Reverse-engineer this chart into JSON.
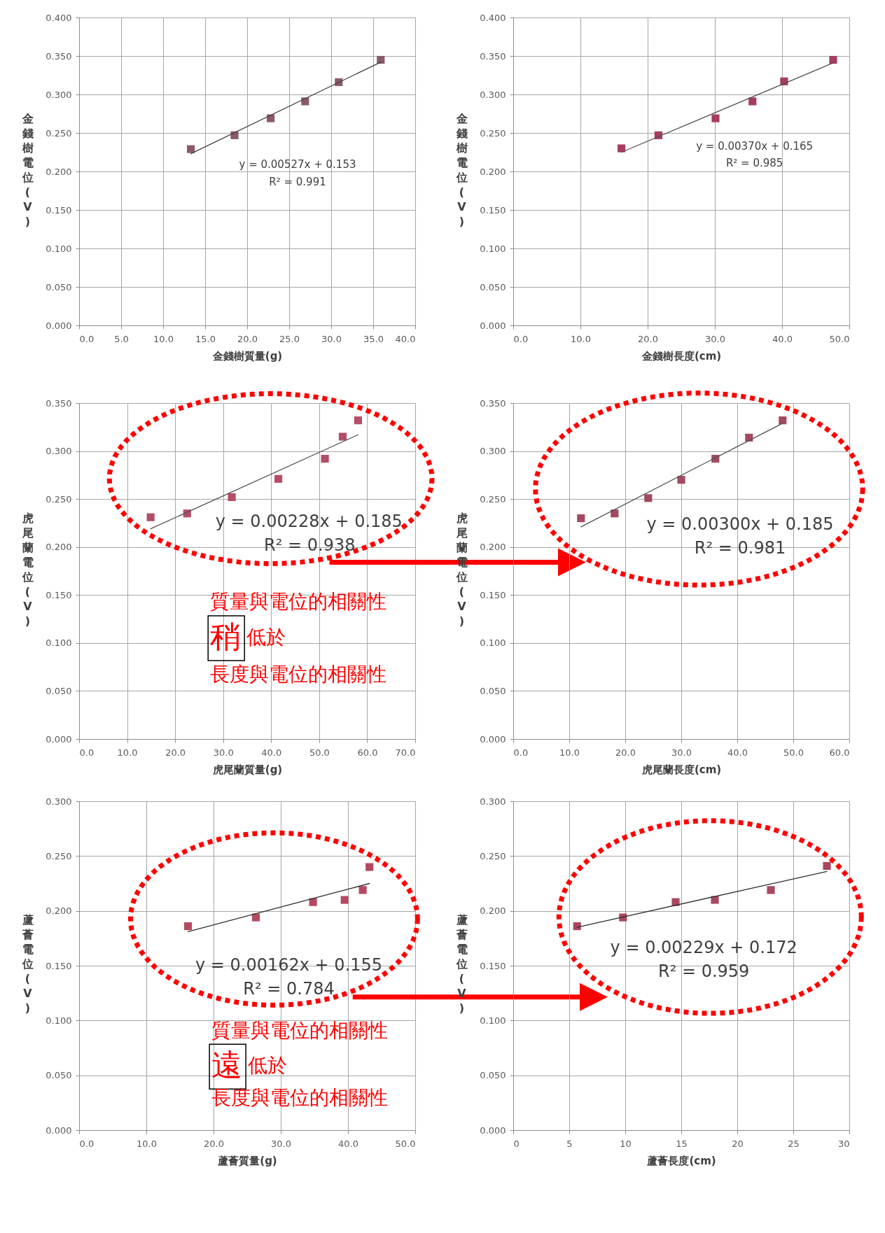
{
  "chart_data": [
    {
      "type": "scatter",
      "xlabel": "金錢樹質量(g)",
      "ylabel": "金錢樹電位(V)",
      "xlim": [
        0,
        40
      ],
      "ylim": [
        0,
        0.4
      ],
      "xticks": [
        {
          "value": 0,
          "label": "0.0"
        },
        {
          "value": 5,
          "label": "5.0"
        },
        {
          "value": 10,
          "label": "10.0"
        },
        {
          "value": 15,
          "label": "15.0"
        },
        {
          "value": 20,
          "label": "20.0"
        },
        {
          "value": 25,
          "label": "25.0"
        },
        {
          "value": 30,
          "label": "30.0"
        },
        {
          "value": 35,
          "label": "35.0"
        },
        {
          "value": 40,
          "label": "40.0"
        }
      ],
      "yticks": [
        {
          "value": 0,
          "label": "0.000"
        },
        {
          "value": 0.05,
          "label": "0.050"
        },
        {
          "value": 0.1,
          "label": "0.100"
        },
        {
          "value": 0.15,
          "label": "0.150"
        },
        {
          "value": 0.2,
          "label": "0.200"
        },
        {
          "value": 0.25,
          "label": "0.250"
        },
        {
          "value": 0.3,
          "label": "0.300"
        },
        {
          "value": 0.35,
          "label": "0.350"
        },
        {
          "value": 0.4,
          "label": "0.400"
        }
      ],
      "grid": true,
      "marker": "square",
      "series": [
        {
          "color": "#8a5a6c",
          "x": [
            13.3,
            18.5,
            22.8,
            26.9,
            30.9,
            35.9
          ],
          "values": [
            0.229,
            0.247,
            0.269,
            0.291,
            0.316,
            0.345
          ]
        },
        {
          "type": "line",
          "marker": "none",
          "color": "#404040",
          "x": [
            13.3,
            35.9
          ],
          "values": [
            0.223,
            0.342
          ]
        }
      ],
      "annotations": [
        "y = 0.00527x + 0.153",
        "R² = 0.991"
      ]
    },
    {
      "type": "scatter",
      "xlabel": "金錢樹長度(cm)",
      "ylabel": "金錢樹電位(V)",
      "xlim": [
        0,
        50
      ],
      "ylim": [
        0,
        0.4
      ],
      "xticks": [
        {
          "value": 0,
          "label": "0.0"
        },
        {
          "value": 10,
          "label": "10.0"
        },
        {
          "value": 20,
          "label": "20.0"
        },
        {
          "value": 30,
          "label": "30.0"
        },
        {
          "value": 40,
          "label": "40.0"
        },
        {
          "value": 50,
          "label": "50.0"
        }
      ],
      "yticks": [
        {
          "value": 0,
          "label": "0.000"
        },
        {
          "value": 0.05,
          "label": "0.050"
        },
        {
          "value": 0.1,
          "label": "0.100"
        },
        {
          "value": 0.15,
          "label": "0.150"
        },
        {
          "value": 0.2,
          "label": "0.200"
        },
        {
          "value": 0.25,
          "label": "0.250"
        },
        {
          "value": 0.3,
          "label": "0.300"
        },
        {
          "value": 0.35,
          "label": "0.350"
        },
        {
          "value": 0.4,
          "label": "0.400"
        }
      ],
      "grid": true,
      "marker": "square",
      "series": [
        {
          "color": "#a63d5e",
          "x": [
            16.1,
            21.6,
            30.1,
            35.6,
            40.3,
            47.6
          ],
          "values": [
            0.23,
            0.247,
            0.269,
            0.291,
            0.317,
            0.345
          ]
        },
        {
          "type": "line",
          "marker": "none",
          "color": "#505050",
          "x": [
            16.1,
            47.6
          ],
          "values": [
            0.225,
            0.341
          ]
        }
      ],
      "annotations": [
        "y = 0.00370x + 0.165",
        "R² = 0.985"
      ]
    },
    {
      "type": "scatter",
      "xlabel": "虎尾蘭質量(g)",
      "ylabel": "虎尾蘭電位(V)",
      "xlim": [
        0,
        70
      ],
      "ylim": [
        0,
        0.35
      ],
      "xticks": [
        {
          "value": 0,
          "label": "0.0"
        },
        {
          "value": 10,
          "label": "10.0"
        },
        {
          "value": 20,
          "label": "20.0"
        },
        {
          "value": 30,
          "label": "30.0"
        },
        {
          "value": 40,
          "label": "40.0"
        },
        {
          "value": 50,
          "label": "50.0"
        },
        {
          "value": 60,
          "label": "60.0"
        },
        {
          "value": 70,
          "label": "70.0"
        }
      ],
      "yticks": [
        {
          "value": 0,
          "label": "0.000"
        },
        {
          "value": 0.05,
          "label": "0.050"
        },
        {
          "value": 0.1,
          "label": "0.100"
        },
        {
          "value": 0.15,
          "label": "0.150"
        },
        {
          "value": 0.2,
          "label": "0.200"
        },
        {
          "value": 0.25,
          "label": "0.250"
        },
        {
          "value": 0.3,
          "label": "0.300"
        },
        {
          "value": 0.35,
          "label": "0.350"
        }
      ],
      "grid": true,
      "marker": "square",
      "series": [
        {
          "color": "#b44e68",
          "x": [
            14.9,
            22.5,
            31.8,
            41.5,
            51.2,
            54.9,
            58.1
          ],
          "values": [
            0.231,
            0.235,
            0.252,
            0.271,
            0.292,
            0.315,
            0.332
          ]
        },
        {
          "type": "line",
          "marker": "none",
          "color": "#505050",
          "x": [
            14.9,
            58.1
          ],
          "values": [
            0.219,
            0.317
          ]
        }
      ],
      "annotations": [
        "y = 0.00228x + 0.185",
        "R² = 0.938",
        "質量與電位的相關性",
        "稍",
        "低於",
        "長度與電位的相關性"
      ]
    },
    {
      "type": "scatter",
      "xlabel": "虎尾蘭長度(cm)",
      "ylabel": "虎尾蘭電位(V)",
      "xlim": [
        0,
        60
      ],
      "ylim": [
        0,
        0.35
      ],
      "xticks": [
        {
          "value": 0,
          "label": "0.0"
        },
        {
          "value": 10,
          "label": "10.0"
        },
        {
          "value": 20,
          "label": "20.0"
        },
        {
          "value": 30,
          "label": "30.0"
        },
        {
          "value": 40,
          "label": "40.0"
        },
        {
          "value": 50,
          "label": "50.0"
        },
        {
          "value": 60,
          "label": "60.0"
        }
      ],
      "yticks": [
        {
          "value": 0,
          "label": "0.000"
        },
        {
          "value": 0.05,
          "label": "0.050"
        },
        {
          "value": 0.1,
          "label": "0.100"
        },
        {
          "value": 0.15,
          "label": "0.150"
        },
        {
          "value": 0.2,
          "label": "0.200"
        },
        {
          "value": 0.25,
          "label": "0.250"
        },
        {
          "value": 0.3,
          "label": "0.300"
        },
        {
          "value": 0.35,
          "label": "0.350"
        }
      ],
      "grid": true,
      "marker": "square",
      "series": [
        {
          "color": "#a34a62",
          "x": [
            12.1,
            18.1,
            24.1,
            30.0,
            36.1,
            42.1,
            48.1
          ],
          "values": [
            0.23,
            0.235,
            0.251,
            0.27,
            0.292,
            0.314,
            0.332
          ]
        },
        {
          "type": "line",
          "marker": "none",
          "color": "#505050",
          "x": [
            12.1,
            48.1
          ],
          "values": [
            0.221,
            0.329
          ]
        }
      ],
      "annotations": [
        "y = 0.00300x + 0.185",
        "R² = 0.981"
      ]
    },
    {
      "type": "scatter",
      "xlabel": "蘆薈質量(g)",
      "ylabel": "蘆薈電位(V)",
      "xlim": [
        0,
        50
      ],
      "ylim": [
        0,
        0.3
      ],
      "xticks": [
        {
          "value": 0,
          "label": "0.0"
        },
        {
          "value": 10,
          "label": "10.0"
        },
        {
          "value": 20,
          "label": "20.0"
        },
        {
          "value": 30,
          "label": "30.0"
        },
        {
          "value": 40,
          "label": "40.0"
        },
        {
          "value": 50,
          "label": "50.0"
        }
      ],
      "yticks": [
        {
          "value": 0,
          "label": "0.000"
        },
        {
          "value": 0.05,
          "label": "0.050"
        },
        {
          "value": 0.1,
          "label": "0.100"
        },
        {
          "value": 0.15,
          "label": "0.150"
        },
        {
          "value": 0.2,
          "label": "0.200"
        },
        {
          "value": 0.25,
          "label": "0.250"
        },
        {
          "value": 0.3,
          "label": "0.300"
        }
      ],
      "grid": true,
      "marker": "square",
      "series": [
        {
          "color": "#b44a62",
          "x": [
            16.2,
            26.3,
            34.8,
            39.5,
            42.2,
            43.2
          ],
          "values": [
            0.186,
            0.194,
            0.208,
            0.21,
            0.219,
            0.24
          ]
        },
        {
          "type": "line",
          "marker": "none",
          "color": "#303030",
          "x": [
            16.2,
            43.2
          ],
          "values": [
            0.181,
            0.225
          ]
        }
      ],
      "annotations": [
        "y = 0.00162x + 0.155",
        "R² = 0.784",
        "質量與電位的相關性",
        "遠",
        "低於",
        "長度與電位的相關性"
      ]
    },
    {
      "type": "scatter",
      "xlabel": "蘆薈長度(cm)",
      "ylabel": "蘆薈電位(V)",
      "xlim": [
        0,
        30
      ],
      "ylim": [
        0,
        0.3
      ],
      "xticks": [
        0,
        5,
        10,
        15,
        20,
        25,
        30
      ],
      "yticks": [
        {
          "value": 0,
          "label": "0.000"
        },
        {
          "value": 0.05,
          "label": "0.050"
        },
        {
          "value": 0.1,
          "label": "0.100"
        },
        {
          "value": 0.15,
          "label": "0.150"
        },
        {
          "value": 0.2,
          "label": "0.200"
        },
        {
          "value": 0.25,
          "label": "0.250"
        },
        {
          "value": 0.3,
          "label": "0.300"
        }
      ],
      "grid": true,
      "marker": "square",
      "series": [
        {
          "color": "#a8485f",
          "x": [
            5.7,
            9.8,
            14.5,
            18.0,
            23.0,
            28.0
          ],
          "values": [
            0.186,
            0.194,
            0.208,
            0.21,
            0.219,
            0.241
          ]
        },
        {
          "type": "line",
          "marker": "none",
          "color": "#303030",
          "x": [
            5.7,
            28.0
          ],
          "values": [
            0.185,
            0.236
          ]
        }
      ],
      "annotations": [
        "y = 0.00229x + 0.172",
        "R² = 0.959"
      ]
    }
  ]
}
